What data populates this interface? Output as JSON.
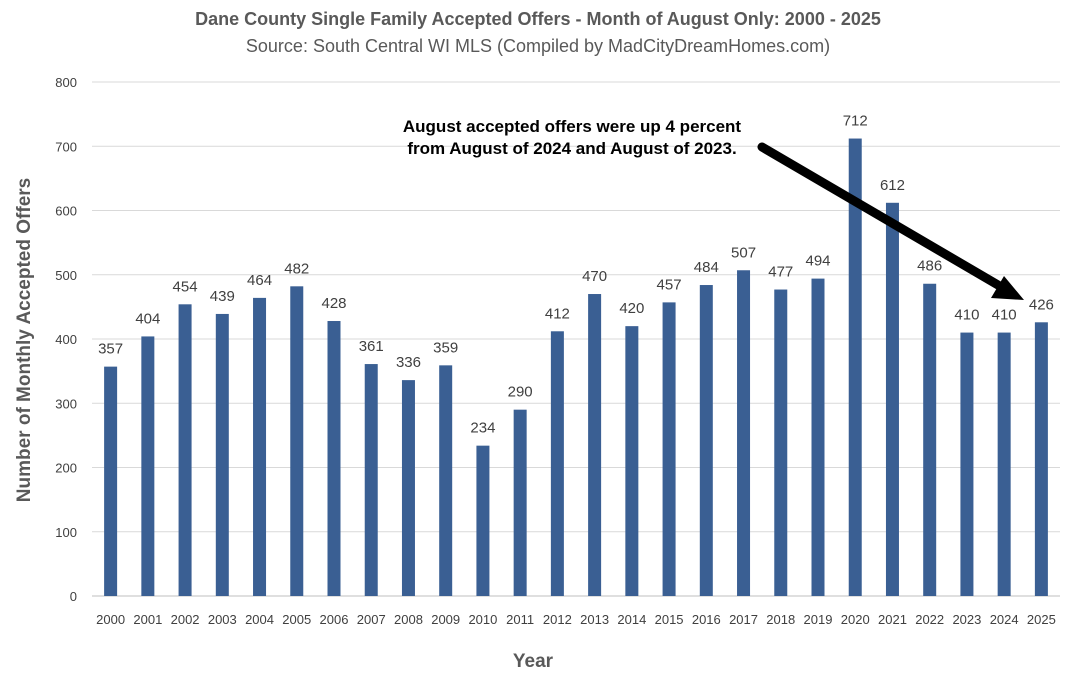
{
  "chart_data": {
    "type": "bar",
    "title": "Dane County Single Family Accepted Offers - Month of August Only: 2000 - 2025",
    "subtitle": "Source: South Central WI MLS (Compiled by MadCityDreamHomes.com)",
    "xlabel": "Year",
    "ylabel": "Number of Monthly Accepted Offers",
    "ylim": [
      0,
      800
    ],
    "yticks": [
      "0",
      "100",
      "200",
      "300",
      "400",
      "500",
      "600",
      "700",
      "800"
    ],
    "grid": true,
    "categories": [
      "2000",
      "2001",
      "2002",
      "2003",
      "2004",
      "2005",
      "2006",
      "2007",
      "2008",
      "2009",
      "2010",
      "2011",
      "2012",
      "2013",
      "2014",
      "2015",
      "2016",
      "2017",
      "2018",
      "2019",
      "2020",
      "2021",
      "2022",
      "2023",
      "2024",
      "2025"
    ],
    "values": [
      357,
      404,
      454,
      439,
      464,
      482,
      428,
      361,
      336,
      359,
      234,
      290,
      412,
      470,
      420,
      457,
      484,
      507,
      477,
      494,
      712,
      612,
      486,
      410,
      410,
      426
    ],
    "data_labels": [
      "357",
      "404",
      "454",
      "439",
      "464",
      "482",
      "428",
      "361",
      "336",
      "359",
      "234",
      "290",
      "412",
      "470",
      "420",
      "457",
      "484",
      "507",
      "477",
      "494",
      "712",
      "612",
      "486",
      "410",
      "410",
      "426"
    ],
    "annotation": {
      "line1": "August accepted offers were up 4 percent",
      "line2": "from August of 2024 and August of 2023."
    },
    "colors": {
      "bar": "#3a5f93",
      "grid": "#d9d9d9",
      "arrow": "#000000"
    }
  }
}
